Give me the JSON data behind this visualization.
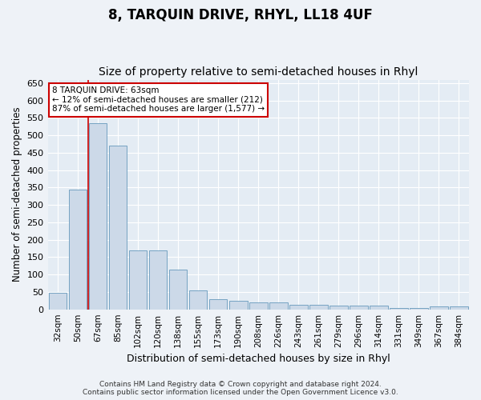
{
  "title": "8, TARQUIN DRIVE, RHYL, LL18 4UF",
  "subtitle": "Size of property relative to semi-detached houses in Rhyl",
  "xlabel": "Distribution of semi-detached houses by size in Rhyl",
  "ylabel": "Number of semi-detached properties",
  "categories": [
    "32sqm",
    "50sqm",
    "67sqm",
    "85sqm",
    "102sqm",
    "120sqm",
    "138sqm",
    "155sqm",
    "173sqm",
    "190sqm",
    "208sqm",
    "226sqm",
    "243sqm",
    "261sqm",
    "279sqm",
    "296sqm",
    "314sqm",
    "331sqm",
    "349sqm",
    "367sqm",
    "384sqm"
  ],
  "values": [
    47,
    345,
    535,
    470,
    170,
    170,
    115,
    55,
    28,
    25,
    20,
    20,
    12,
    12,
    10,
    10,
    10,
    3,
    3,
    8,
    8
  ],
  "bar_color": "#ccd9e8",
  "bar_edge_color": "#6699bb",
  "red_line_x": 1.5,
  "annotation_title": "8 TARQUIN DRIVE: 63sqm",
  "annotation_line1": "← 12% of semi-detached houses are smaller (212)",
  "annotation_line2": "87% of semi-detached houses are larger (1,577) →",
  "annotation_box_facecolor": "#ffffff",
  "annotation_box_edgecolor": "#cc0000",
  "ylim": [
    0,
    660
  ],
  "yticks": [
    0,
    50,
    100,
    150,
    200,
    250,
    300,
    350,
    400,
    450,
    500,
    550,
    600,
    650
  ],
  "background_color": "#eef2f7",
  "plot_background_color": "#e4ecf4",
  "grid_color": "#ffffff",
  "footer_line1": "Contains HM Land Registry data © Crown copyright and database right 2024.",
  "footer_line2": "Contains public sector information licensed under the Open Government Licence v3.0."
}
